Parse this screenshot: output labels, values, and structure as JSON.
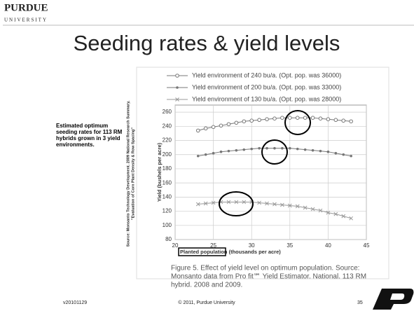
{
  "logo": {
    "name": "PURDUE",
    "sub": "UNIVERSITY"
  },
  "title": "Seeding rates & yield levels",
  "side_note": [
    "Estimated optimum",
    "seeding rates for 113 RM",
    "hybrids grown in 3 yield",
    "environments."
  ],
  "source": [
    "Source: Monsanto Technology Development. 2009 National Research Summary,",
    "\"Evaluation of Corn Plant Density & Row Spacing\""
  ],
  "caption": [
    "Figure 5.  Effect of yield level on optimum population.  Source:",
    "Monsanto data from Pro fit℠ Yield Estimator. National. 113 RM",
    "hybrid. 2008 and 2009."
  ],
  "footer": {
    "version": "v20101129",
    "copyright": "© 2011, Purdue University",
    "page": "35"
  },
  "chart_data": {
    "type": "line",
    "x_label": "Planted population (thousands per acre)",
    "y_label": "Yield (bushels per acre)",
    "x": [
      23,
      24,
      25,
      26,
      27,
      28,
      29,
      30,
      31,
      32,
      33,
      34,
      35,
      36,
      37,
      38,
      39,
      40,
      41,
      42,
      43
    ],
    "series": [
      {
        "name": "Yield environment of 240 bu/a. (Opt. pop. was 36000)",
        "color": "#777777",
        "marker": "circle",
        "values": [
          234,
          237,
          239,
          241,
          243,
          245,
          247,
          248,
          249,
          250,
          251,
          252,
          252,
          252,
          252,
          252,
          251,
          250,
          249,
          248,
          247
        ]
      },
      {
        "name": "Yield environment of 200 bu/a. (Opt. pop. was 33000)",
        "color": "#777777",
        "marker": "dot",
        "values": [
          198,
          200,
          202,
          204,
          205,
          206,
          207,
          208,
          209,
          209,
          209,
          209,
          209,
          208,
          207,
          206,
          205,
          204,
          202,
          200,
          198
        ]
      },
      {
        "name": "Yield environment of 130 bu/a. (Opt. pop. was 28000)",
        "color": "#999999",
        "marker": "cross",
        "values": [
          130,
          131,
          132,
          133,
          133,
          133,
          133,
          133,
          132,
          131,
          130,
          129,
          128,
          127,
          125,
          123,
          121,
          118,
          116,
          113,
          110
        ]
      }
    ],
    "xlim": [
      20,
      45
    ],
    "xticks": [
      20,
      25,
      30,
      35,
      40,
      45
    ],
    "ylim": [
      80,
      270
    ],
    "yticks": [
      80,
      100,
      120,
      140,
      160,
      180,
      200,
      220,
      240,
      260
    ],
    "grid": true
  }
}
